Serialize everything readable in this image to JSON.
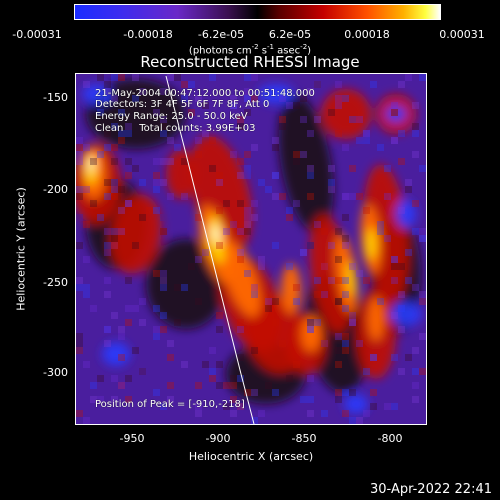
{
  "colorbar": {
    "ticks": [
      "-0.00031",
      "-0.00018",
      "-6.2e-05",
      "6.2e-05",
      "0.00018",
      "0.00031"
    ],
    "label_main": "(photons cm",
    "label_exp1": "-2",
    "label_mid1": " s",
    "label_exp2": "-1",
    "label_mid2": " asec",
    "label_exp3": "-2",
    "label_end": ")"
  },
  "title": "Reconstructed RHESSI Image",
  "annotations": {
    "time_range": "21-May-2004 00:47:12.000 to 00:51:48.000",
    "detectors": "Detectors: 3F 4F 5F 6F 7F 8F, Att 0",
    "energy_range": "Energy Range: 25.0 - 50.0 keV",
    "clean": "Clean     Total counts: 3.99E+03",
    "peak": "Position of Peak = [-910,-218]"
  },
  "axes": {
    "ylabel": "Heliocentric Y (arcsec)",
    "xlabel": "Heliocentric X (arcsec)",
    "yticks": [
      "-150",
      "-200",
      "-250",
      "-300"
    ],
    "xticks": [
      "-950",
      "-900",
      "-850",
      "-800"
    ],
    "xlim": [
      -976,
      -792
    ],
    "ylim": [
      -326,
      -140
    ]
  },
  "timestamp": "30-Apr-2022 22:41",
  "colors": {
    "background": "#000000",
    "plot_background": "#4a1e9e",
    "limb_line": "#ffffff"
  }
}
